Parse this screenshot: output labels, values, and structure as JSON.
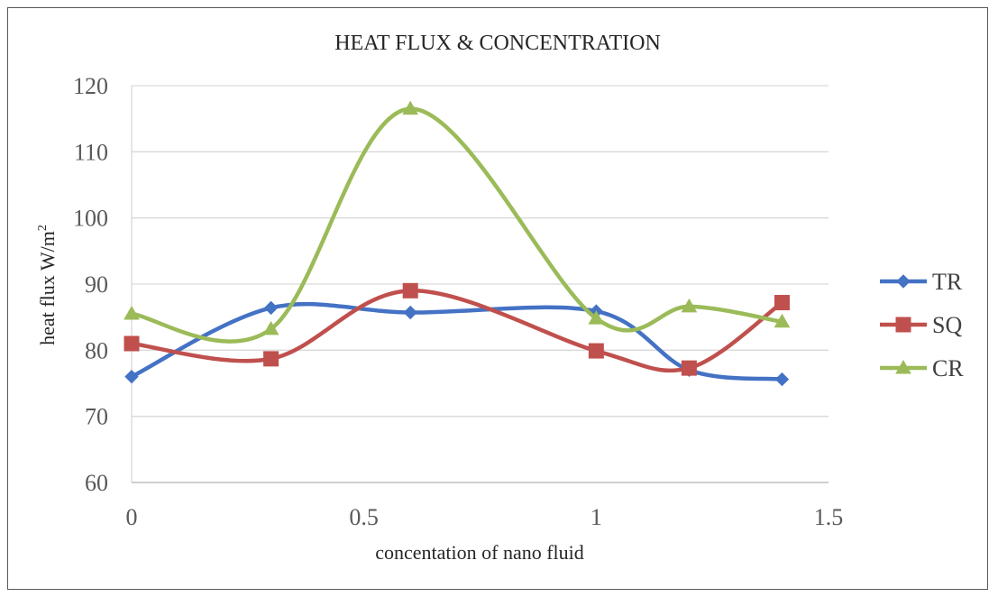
{
  "chart_data": {
    "type": "scatter",
    "title": "HEAT FLUX  & CONCENTRATION",
    "xlabel": "concentation of nano fluid",
    "ylabel": "heat flux  W/m",
    "ylabel_superscript": "2",
    "xlim": [
      0,
      1.5
    ],
    "ylim": [
      60,
      120
    ],
    "x_ticks": [
      "0",
      "0.5",
      "1",
      "1.5"
    ],
    "y_ticks": [
      "60",
      "70",
      "80",
      "90",
      "100",
      "110",
      "120"
    ],
    "grid": "horizontal",
    "legend_position": "right",
    "smooth": true,
    "series": [
      {
        "name": "TR",
        "color": "#4472C4",
        "marker": "diamond",
        "x": [
          0,
          0.3,
          0.6,
          1,
          1.2,
          1.4
        ],
        "y": [
          76,
          86.4,
          85.7,
          85.9,
          77,
          75.6
        ]
      },
      {
        "name": "SQ",
        "color": "#C0504D",
        "marker": "square",
        "x": [
          0,
          0.3,
          0.6,
          1,
          1.2,
          1.4
        ],
        "y": [
          81,
          78.7,
          89,
          79.9,
          77.3,
          87.2
        ]
      },
      {
        "name": "CR",
        "color": "#9BBB59",
        "marker": "triangle",
        "x": [
          0,
          0.3,
          0.6,
          1,
          1.2,
          1.4
        ],
        "y": [
          85.5,
          83.2,
          116.5,
          84.8,
          86.6,
          84.3
        ]
      }
    ]
  }
}
